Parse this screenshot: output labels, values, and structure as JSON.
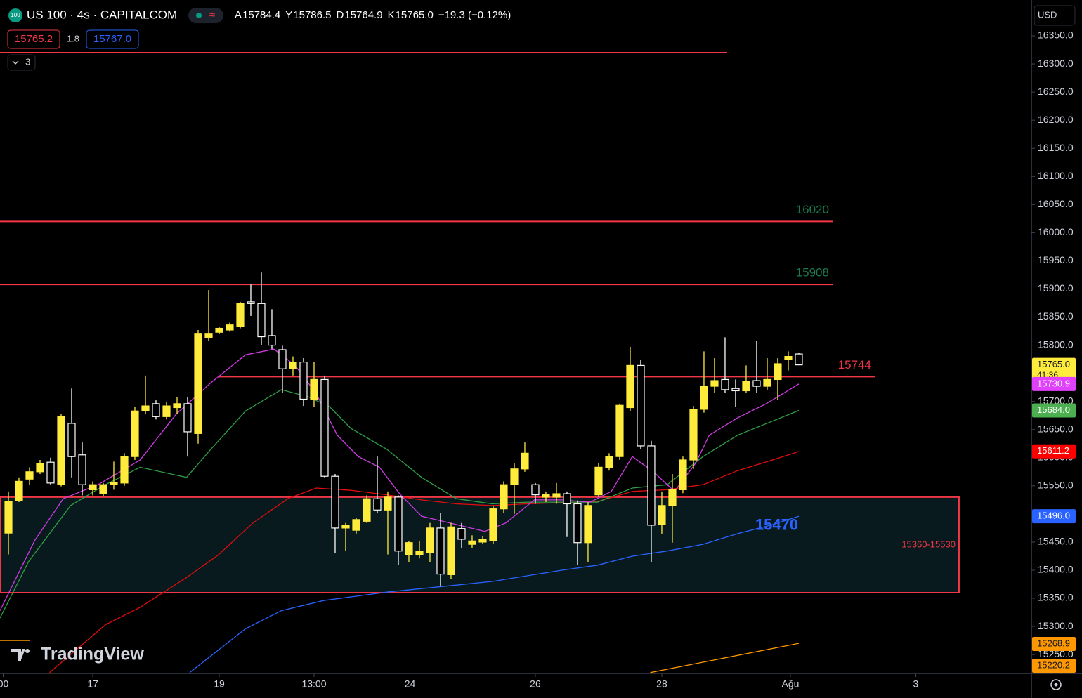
{
  "toolbar": {
    "logo": "100",
    "symbol": "US 100 · 4s · CAPITALCOM",
    "ohlc": [
      {
        "letter": "A",
        "value": "15784.4"
      },
      {
        "letter": "Y",
        "value": "15786.5"
      },
      {
        "letter": "D",
        "value": "15764.9"
      },
      {
        "letter": "K",
        "value": "15765.0"
      }
    ],
    "change": "−19.3 (−0.12%)",
    "sell": "15765.2",
    "spread": "1.8",
    "buy": "15767.0",
    "indicators": "3",
    "currency": "USD",
    "brand": "TradingView"
  },
  "chart_data": {
    "type": "candlestick",
    "up_color": "#ffeb3b",
    "down_color": "#ffffff",
    "open": [
      15466,
      15524,
      15562,
      15575,
      15592,
      15552,
      15661,
      15605,
      15543,
      15536,
      15552,
      15555,
      15602,
      15683,
      15696,
      15673,
      15689,
      15696,
      15643,
      15814,
      15823,
      15827,
      15833,
      15877,
      15874,
      15817,
      15792,
      15758,
      15770,
      15704,
      15739,
      15567,
      15475,
      15471,
      15487,
      15527,
      15507,
      15530,
      15427,
      15427,
      15431,
      15475,
      15392,
      15474,
      15446,
      15450,
      15452,
      15509,
      15552,
      15580,
      15552,
      15530,
      15530,
      15536,
      15518,
      15449,
      15534,
      15583,
      15602,
      15689,
      15764,
      15621,
      15481,
      15515,
      15543,
      15596,
      15686,
      15727,
      15739,
      15723,
      15719,
      15737,
      15727,
      15739,
      15774,
      15784.4
    ],
    "high": [
      15540,
      15565,
      15583,
      15596,
      15600,
      15677,
      15723,
      15627,
      15558,
      15555,
      15593,
      15608,
      15690,
      15746,
      15702,
      15699,
      15708,
      15708,
      15827,
      15898,
      15833,
      15840,
      15877,
      15908,
      15929,
      15864,
      15799,
      15780,
      15777,
      15770,
      15746,
      15571,
      15484,
      15493,
      15533,
      15602,
      15540,
      15533,
      15452,
      15452,
      15484,
      15502,
      15484,
      15484,
      15462,
      15460,
      15515,
      15558,
      15590,
      15627,
      15555,
      15540,
      15555,
      15540,
      15524,
      15521,
      15590,
      15608,
      15696,
      15797,
      15774,
      15630,
      15540,
      15571,
      15602,
      15692,
      15789,
      15777,
      15814,
      15739,
      15764,
      15808,
      15777,
      15777,
      15789,
      15786.5
    ],
    "low": [
      15428,
      15521,
      15552,
      15571,
      15552,
      15549,
      15565,
      15533,
      15533,
      15531,
      15543,
      15550,
      15596,
      15677,
      15668,
      15668,
      15677,
      15602,
      15625,
      15808,
      15820,
      15824,
      15830,
      15852,
      15800,
      15793,
      15715,
      15746,
      15692,
      15690,
      15565,
      15430,
      15434,
      15465,
      15484,
      15502,
      15428,
      15409,
      15415,
      15421,
      15415,
      15371,
      15384,
      15440,
      15440,
      15446,
      15446,
      15502,
      15500,
      15575,
      15518,
      15521,
      15518,
      15459,
      15409,
      15415,
      15530,
      15577,
      15596,
      15683,
      15615,
      15415,
      15465,
      15449,
      15537,
      15580,
      15680,
      15715,
      15715,
      15690,
      15715,
      15715,
      15721,
      15702,
      15755,
      15764.9
    ],
    "close": [
      15522,
      15558,
      15575,
      15590,
      15555,
      15673,
      15602,
      15552,
      15552,
      15552,
      15556,
      15602,
      15683,
      15692,
      15673,
      15692,
      15696,
      15646,
      15821,
      15821,
      15830,
      15836,
      15874,
      15874,
      15815,
      15800,
      15758,
      15770,
      15704,
      15739,
      15567,
      15475,
      15480,
      15490,
      15527,
      15507,
      15530,
      15434,
      15449,
      15434,
      15475,
      15393,
      15477,
      15455,
      15452,
      15455,
      15509,
      15552,
      15580,
      15608,
      15534,
      15534,
      15536,
      15518,
      15449,
      15515,
      15583,
      15602,
      15693,
      15764,
      15621,
      15480,
      15515,
      15543,
      15596,
      15686,
      15727,
      15737,
      15721,
      15719,
      15736,
      15727,
      15739,
      15767,
      15780,
      15765.0
    ],
    "lines": [
      {
        "color": "#2962ff",
        "x": [
          17.2,
          22.5,
          25.9,
          29.9,
          35.9,
          41.2,
          45.9,
          49.2,
          52.5,
          55.9,
          59.2,
          62.5,
          65.9,
          69.2,
          72.5,
          75
        ],
        "values": [
          15218,
          15296,
          15328,
          15346,
          15361,
          15371,
          15380,
          15390,
          15400,
          15409,
          15425,
          15434,
          15446,
          15465,
          15481,
          15496
        ]
      },
      {
        "color": "#e00d0d",
        "x": [
          3.9,
          9.2,
          12.5,
          16.9,
          19.9,
          23.2,
          26.5,
          29.2,
          32.5,
          35.9,
          39.2,
          42.5,
          45.9,
          49.2,
          52.5,
          55.9,
          59.2,
          62.5,
          65.9,
          69.2,
          72.5,
          75
        ],
        "values": [
          15218,
          15303,
          15334,
          15387,
          15427,
          15484,
          15527,
          15546,
          15542,
          15534,
          15525,
          15518,
          15515,
          15518,
          15520,
          15522,
          15540,
          15543,
          15552,
          15577,
          15596,
          15611
        ]
      },
      {
        "color": "#2e9e44",
        "x": [
          -0.8,
          1.9,
          5.9,
          9.2,
          12.5,
          16.9,
          19.2,
          22.5,
          25.9,
          28.5,
          30.5,
          32.5,
          35.9,
          39.2,
          42.5,
          45.9,
          49.2,
          52.5,
          55.9,
          59.2,
          62.5,
          65.9,
          69.2,
          72.5,
          75
        ],
        "values": [
          15315,
          15415,
          15515,
          15552,
          15583,
          15565,
          15615,
          15683,
          15721,
          15708,
          15690,
          15652,
          15615,
          15565,
          15527,
          15518,
          15521,
          15521,
          15521,
          15546,
          15552,
          15602,
          15640,
          15665,
          15684
        ]
      },
      {
        "color": "#d13ae6",
        "x": [
          -0.8,
          2.5,
          5.2,
          8.5,
          12.5,
          15.9,
          19.2,
          22.5,
          25.2,
          27.2,
          29.2,
          31.2,
          33.2,
          35.2,
          37.2,
          39.2,
          41.9,
          45.2,
          47.2,
          49.9,
          52.5,
          55.2,
          57.2,
          59.2,
          61.2,
          63.2,
          65.2,
          66.5,
          69.2,
          71.9,
          75
        ],
        "values": [
          15328,
          15453,
          15527,
          15552,
          15596,
          15677,
          15733,
          15783,
          15793,
          15764,
          15714,
          15640,
          15602,
          15583,
          15534,
          15496,
          15484,
          15469,
          15484,
          15525,
          15525,
          15521,
          15540,
          15602,
          15575,
          15540,
          15590,
          15640,
          15671,
          15696,
          15731
        ]
      },
      {
        "color": "#ff9800",
        "x": [
          60.9,
          75
        ],
        "values": [
          15218,
          15270
        ]
      },
      {
        "color": "#ff9800",
        "x": [
          -0.8,
          2
        ],
        "values": [
          15275,
          15275
        ]
      }
    ],
    "levels": [
      {
        "value": 16320,
        "x": [
          -0.8,
          68.2
        ],
        "color": "#f23645"
      },
      {
        "value": 16020,
        "x": [
          -0.8,
          78.2
        ],
        "color": "#f23645",
        "label_color": "#1b7a4e"
      },
      {
        "value": 15908,
        "x": [
          -0.8,
          78.2
        ],
        "color": "#f23645",
        "label_color": "#1b7a4e"
      },
      {
        "value": 15744,
        "x": [
          20,
          82.2
        ],
        "color": "#f23645",
        "label_color": "#f23645"
      }
    ],
    "zone": {
      "low": 15360,
      "high": 15530,
      "x": [
        -0.8,
        90.2
      ],
      "label": "15360-15530",
      "color": "#f23645",
      "fill": "#081a1e"
    },
    "annotations": [
      {
        "text": "15470",
        "x": 72.9,
        "y": 15479,
        "color": "#2962ff"
      }
    ],
    "price_labels": [
      {
        "value": 15765.0,
        "label": "15765.0",
        "sub": "41:36",
        "color": "#ffeb3b",
        "text_color": "#131722"
      },
      {
        "value": 15730.9,
        "label": "15730.9",
        "color": "#e040fb",
        "text_color": "#ffffff"
      },
      {
        "value": 15684.0,
        "label": "15684.0",
        "color": "#4caf50",
        "text_color": "#ffffff"
      },
      {
        "value": 15611.2,
        "label": "15611.2",
        "color": "#ff0000",
        "text_color": "#ffffff"
      },
      {
        "value": 15496.0,
        "label": "15496.0",
        "color": "#2962ff",
        "text_color": "#ffffff"
      },
      {
        "value": 15268.9,
        "label": "15268.9",
        "color": "#ff9800",
        "text_color": "#131722"
      },
      {
        "value": 15220.2,
        "label": "15220.2",
        "color": "#ff9800",
        "text_color": "#131722"
      }
    ],
    "xlim": [
      -0.8,
      97.07
    ],
    "xticks": [
      {
        "value": -0.5,
        "label": "00"
      },
      {
        "value": 8,
        "label": "17"
      },
      {
        "value": 20,
        "label": "19"
      },
      {
        "value": 29,
        "label": "13:00"
      },
      {
        "value": 38.1,
        "label": "24"
      },
      {
        "value": 50,
        "label": "26"
      },
      {
        "value": 62,
        "label": "28"
      },
      {
        "value": 74.2,
        "label": "Ağu"
      },
      {
        "value": 86.1,
        "label": "3"
      }
    ],
    "ylim": [
      15217.7,
      16413.7
    ],
    "yticks": [
      {
        "value": 16350,
        "label": "16350.0"
      },
      {
        "value": 16300,
        "label": "16300.0"
      },
      {
        "value": 16250,
        "label": "16250.0"
      },
      {
        "value": 16200,
        "label": "16200.0"
      },
      {
        "value": 16150,
        "label": "16150.0"
      },
      {
        "value": 16100,
        "label": "16100.0"
      },
      {
        "value": 16050,
        "label": "16050.0"
      },
      {
        "value": 16000,
        "label": "16000.0"
      },
      {
        "value": 15950,
        "label": "15950.0"
      },
      {
        "value": 15900,
        "label": "15900.0"
      },
      {
        "value": 15850,
        "label": "15850.0"
      },
      {
        "value": 15800,
        "label": "15800.0"
      },
      {
        "value": 15700,
        "label": "15700.0"
      },
      {
        "value": 15650,
        "label": "15650.0"
      },
      {
        "value": 15600,
        "label": "15600.0"
      },
      {
        "value": 15550,
        "label": "15550.0"
      },
      {
        "value": 15450,
        "label": "15450.0"
      },
      {
        "value": 15400,
        "label": "15400.0"
      },
      {
        "value": 15350,
        "label": "15350.0"
      },
      {
        "value": 15300,
        "label": "15300.0"
      },
      {
        "value": 15250,
        "label": "15250.0"
      }
    ],
    "grid": false
  }
}
